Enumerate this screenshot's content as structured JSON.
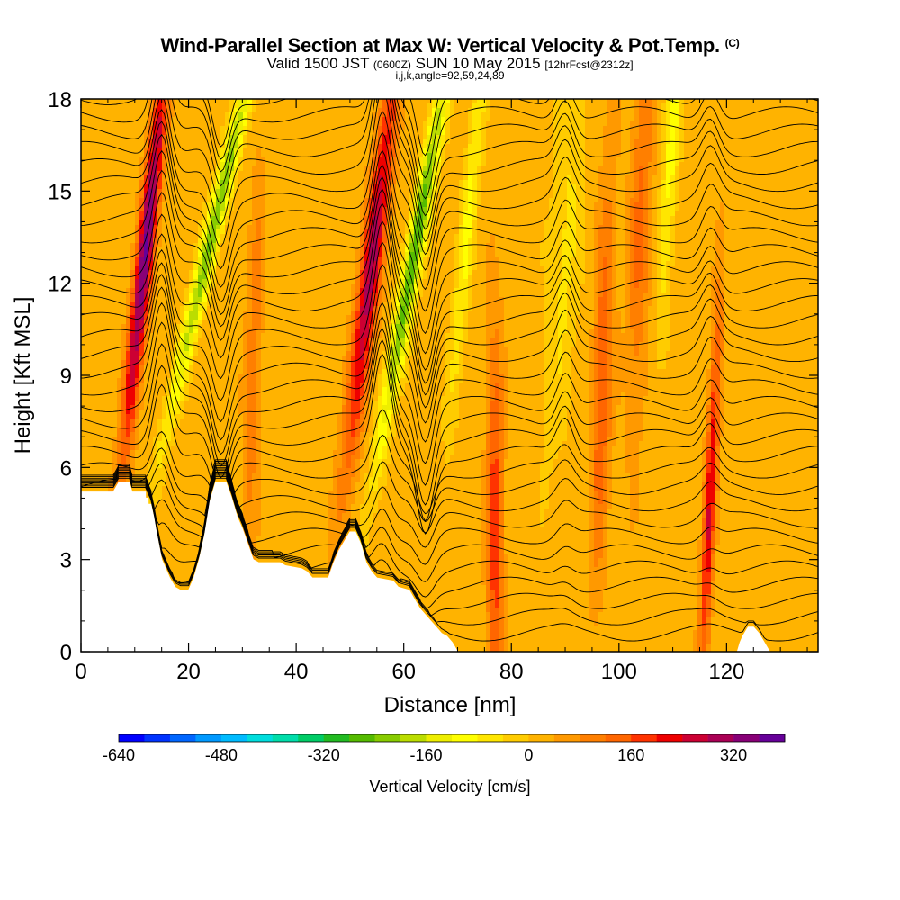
{
  "header": {
    "title": "Wind-Parallel Section at Max W: Vertical Velocity & Pot.Temp.",
    "copyright": "(C)",
    "valid_prefix": "Valid 1500 JST",
    "valid_zulu": "(0600Z)",
    "valid_date": "SUN 10 May 2015",
    "forecast": "[12hrFcst@2312z]",
    "indices": "i,j,k,angle=92,59,24,89"
  },
  "chart_data": {
    "type": "heatmap",
    "xlabel": "Distance [nm]",
    "ylabel": "Height [Kft MSL]",
    "xlim": [
      0,
      137
    ],
    "ylim": [
      0,
      18
    ],
    "x_ticks": [
      0,
      20,
      40,
      60,
      80,
      100,
      120
    ],
    "y_ticks": [
      0,
      3,
      6,
      9,
      12,
      15,
      18
    ],
    "colorbar": {
      "label": "Vertical Velocity [cm/s]",
      "tick_labels": [
        -640,
        -480,
        -320,
        -160,
        0,
        160,
        320
      ],
      "range": [
        -640,
        400
      ],
      "colors": [
        "#0000ff",
        "#0033ff",
        "#0066ff",
        "#0099ff",
        "#00bbff",
        "#00dddd",
        "#00ddaa",
        "#00cc66",
        "#22bb22",
        "#55bb00",
        "#88cc00",
        "#bbdd00",
        "#eeee00",
        "#ffff00",
        "#ffe600",
        "#ffcc00",
        "#ffb300",
        "#ff9900",
        "#ff7f00",
        "#ff6600",
        "#ff3300",
        "#ee0000",
        "#cc0033",
        "#aa0055",
        "#880077",
        "#660099"
      ]
    },
    "terrain_height_kft": [
      [
        0,
        5.2
      ],
      [
        6,
        5.2
      ],
      [
        7,
        5.5
      ],
      [
        9,
        5.5
      ],
      [
        9.5,
        5.2
      ],
      [
        12,
        5.2
      ],
      [
        12,
        5.0
      ],
      [
        12.5,
        5.0
      ],
      [
        12.5,
        4.8
      ],
      [
        13,
        4.8
      ],
      [
        13.5,
        4.4
      ],
      [
        14,
        3.9
      ],
      [
        15,
        3.0
      ],
      [
        16.5,
        2.4
      ],
      [
        17.5,
        2.1
      ],
      [
        18.5,
        2.0
      ],
      [
        20,
        2.0
      ],
      [
        21,
        2.4
      ],
      [
        22,
        3.0
      ],
      [
        23,
        3.8
      ],
      [
        24,
        4.9
      ],
      [
        25,
        5.5
      ],
      [
        27,
        5.5
      ],
      [
        28,
        5.0
      ],
      [
        29,
        4.4
      ],
      [
        30,
        4.0
      ],
      [
        31,
        3.5
      ],
      [
        32,
        3.0
      ],
      [
        33,
        2.9
      ],
      [
        37,
        2.9
      ],
      [
        38,
        2.8
      ],
      [
        41,
        2.7
      ],
      [
        42,
        2.6
      ],
      [
        43,
        2.4
      ],
      [
        46,
        2.4
      ],
      [
        47,
        2.9
      ],
      [
        48,
        3.3
      ],
      [
        49,
        3.6
      ],
      [
        50,
        3.9
      ],
      [
        51,
        3.9
      ],
      [
        52,
        3.5
      ],
      [
        53,
        2.9
      ],
      [
        54,
        2.6
      ],
      [
        55,
        2.4
      ],
      [
        58,
        2.3
      ],
      [
        59,
        2.1
      ],
      [
        61,
        2.0
      ],
      [
        62,
        1.7
      ],
      [
        63,
        1.4
      ],
      [
        64,
        1.2
      ],
      [
        65,
        1.0
      ],
      [
        66,
        0.8
      ],
      [
        67,
        0.6
      ],
      [
        68,
        0.5
      ],
      [
        69,
        0.3
      ],
      [
        70,
        0.0
      ],
      [
        122,
        0.0
      ],
      [
        122.5,
        0.3
      ],
      [
        123,
        0.5
      ],
      [
        124,
        0.8
      ],
      [
        125,
        0.8
      ],
      [
        126,
        0.6
      ],
      [
        127,
        0.3
      ],
      [
        128,
        0.0
      ],
      [
        137,
        0.0
      ]
    ],
    "updraft_cores": [
      {
        "x": 12,
        "z": 13,
        "w": 340,
        "slant_nm": 3.5,
        "half_width_nm": 1.6
      },
      {
        "x": 54,
        "z": 12.5,
        "w": 280,
        "slant_nm": 4,
        "half_width_nm": 2.0
      },
      {
        "x": 77,
        "z": 4,
        "w": 170,
        "slant_nm": 0,
        "half_width_nm": 1.5
      },
      {
        "x": 97,
        "z": 9,
        "w": 140,
        "slant_nm": 1,
        "half_width_nm": 1.8
      },
      {
        "x": 117,
        "z": 5,
        "w": 220,
        "slant_nm": 1.5,
        "half_width_nm": 1.1
      },
      {
        "x": 32,
        "z": 9,
        "w": 90,
        "slant_nm": 1,
        "half_width_nm": 1.5
      },
      {
        "x": 104,
        "z": 14,
        "w": 110,
        "slant_nm": 1,
        "half_width_nm": 2.0
      }
    ],
    "downdraft_cores": [
      {
        "x": 25,
        "z": 14,
        "w": -260,
        "slant_nm": 8,
        "half_width_nm": 1.6
      },
      {
        "x": 62,
        "z": 13,
        "w": -300,
        "slant_nm": 6,
        "half_width_nm": 1.6
      },
      {
        "x": 72,
        "z": 14,
        "w": -110,
        "slant_nm": 3,
        "half_width_nm": 1.5
      },
      {
        "x": 110,
        "z": 17,
        "w": -120,
        "slant_nm": 2,
        "half_width_nm": 1.5
      },
      {
        "x": 90,
        "z": 13,
        "w": -70,
        "slant_nm": 2,
        "half_width_nm": 3.0
      }
    ],
    "theta_wave_amplitude_nm": [
      {
        "x": 15,
        "amp": 2.5
      },
      {
        "x": 26,
        "amp": -2.0
      },
      {
        "x": 56,
        "amp": 3.0
      },
      {
        "x": 64,
        "amp": -2.5
      },
      {
        "x": 90,
        "amp": 1.2
      },
      {
        "x": 117,
        "amp": 1.0
      }
    ],
    "theta_contour_count": 34
  }
}
